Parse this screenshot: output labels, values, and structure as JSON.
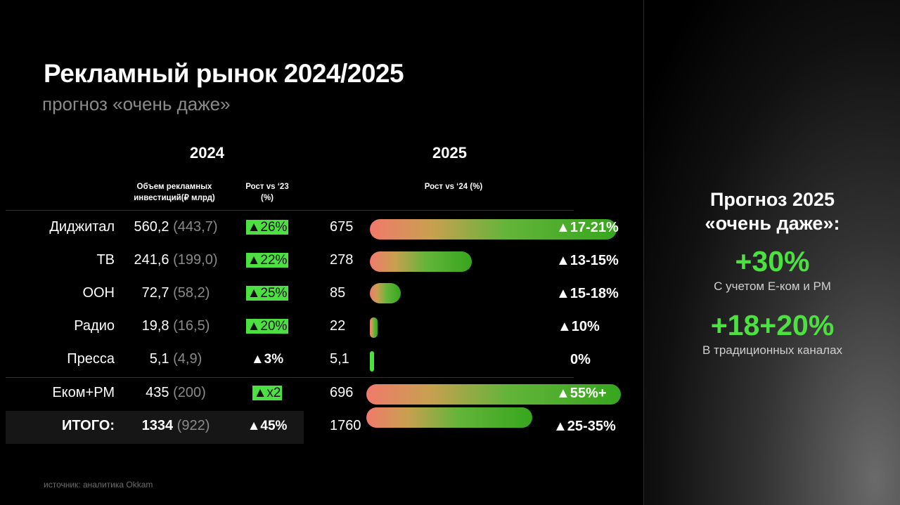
{
  "title": "Рекламный рынок 2024/2025",
  "subtitle": "прогноз «очень даже»",
  "year_2024": "2024",
  "year_2025": "2025",
  "col_volume": [
    "Объем рекламных",
    "инвестиций(₽ млрд)"
  ],
  "col_growth_23": [
    "Рост vs ‘23",
    "(%)"
  ],
  "col_growth_24": "Рост vs ‘24 (%)",
  "rows": [
    {
      "category": "Диджитал",
      "value_2024": "560,2",
      "value_2023": "(443,7)",
      "growth_2024": "▲26%",
      "value_2025": "675",
      "growth_2025": "▲17-21%",
      "bar": 675
    },
    {
      "category": "ТВ",
      "value_2024": "241,6",
      "value_2023": "(199,0)",
      "growth_2024": "▲22%",
      "value_2025": "278",
      "growth_2025": "▲13-15%",
      "bar": 278
    },
    {
      "category": "OOH",
      "value_2024": "72,7",
      "value_2023": "(58,2)",
      "growth_2024": "▲25%",
      "value_2025": "85",
      "growth_2025": "▲15-18%",
      "bar": 85
    },
    {
      "category": "Радио",
      "value_2024": "19,8",
      "value_2023": "(16,5)",
      "growth_2024": "▲20%",
      "value_2025": "22",
      "growth_2025": "▲10%",
      "bar": 22
    },
    {
      "category": "Пресса",
      "value_2024": "5,1",
      "value_2023": "(4,9)",
      "growth_2024": "▲3%",
      "value_2025": "5,1",
      "growth_2025": "0%",
      "bar": 5.1
    },
    {
      "category": "Еком+РМ",
      "value_2024": "435",
      "value_2023": "(200)",
      "growth_2024": "▲x2",
      "value_2025": "696",
      "growth_2025": "▲55%+",
      "bar": 696
    },
    {
      "category": "ИТОГО:",
      "value_2024": "1334",
      "value_2023": "(922)",
      "growth_2024": "▲45%",
      "value_2025": "1760",
      "growth_2025": "▲25-35%",
      "bar": 1760
    }
  ],
  "source": "источник: аналитика Okkam",
  "side": {
    "title_line1": "Прогноз 2025",
    "title_line2": "«очень даже»:",
    "big1": "+30%",
    "small1": "С учетом Е-ком и РМ",
    "big2": "+18+20%",
    "small2": "В традиционных каналах"
  },
  "colors": {
    "accent": "#4ce040",
    "muted": "#8a8a8a",
    "bar_start": "#f07a6c",
    "bar_end": "#37a61e"
  }
}
